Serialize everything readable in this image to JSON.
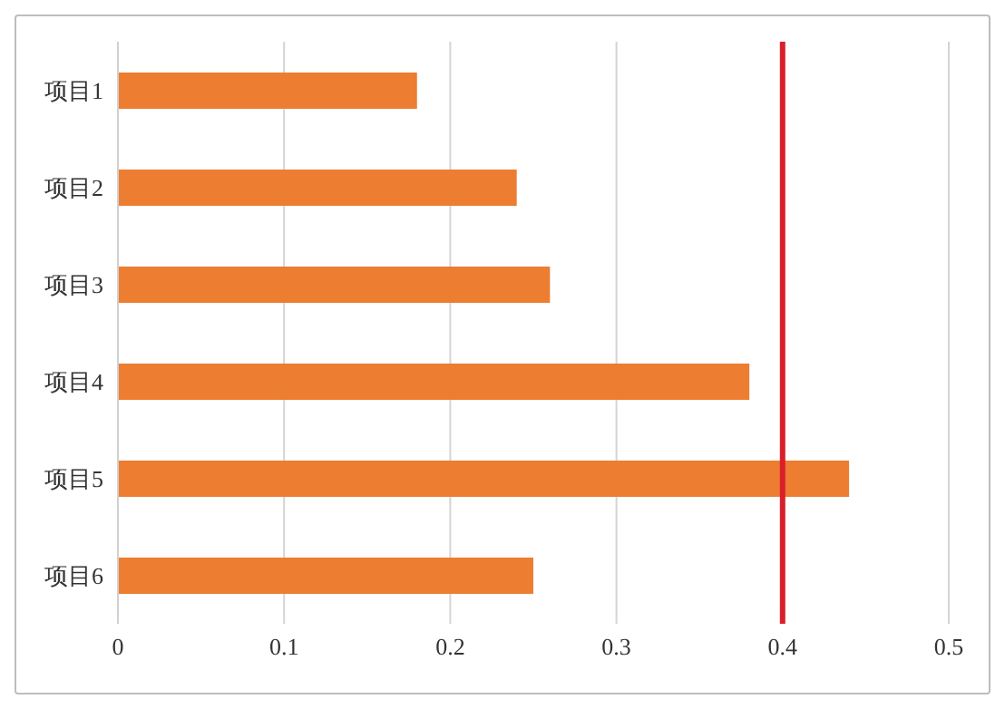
{
  "chart_data": {
    "type": "bar",
    "orientation": "horizontal",
    "categories": [
      "项目1",
      "项目2",
      "项目3",
      "项目4",
      "项目5",
      "项目6"
    ],
    "values": [
      0.18,
      0.24,
      0.26,
      0.38,
      0.44,
      0.25
    ],
    "color": "#ed7d31",
    "xlim": [
      0,
      0.5
    ],
    "xticks": [
      0,
      0.1,
      0.2,
      0.3,
      0.4,
      0.5
    ],
    "grid": "x",
    "ref_lines": [
      {
        "axis": "x",
        "value": 0.4,
        "color": "#d9202a"
      }
    ]
  }
}
